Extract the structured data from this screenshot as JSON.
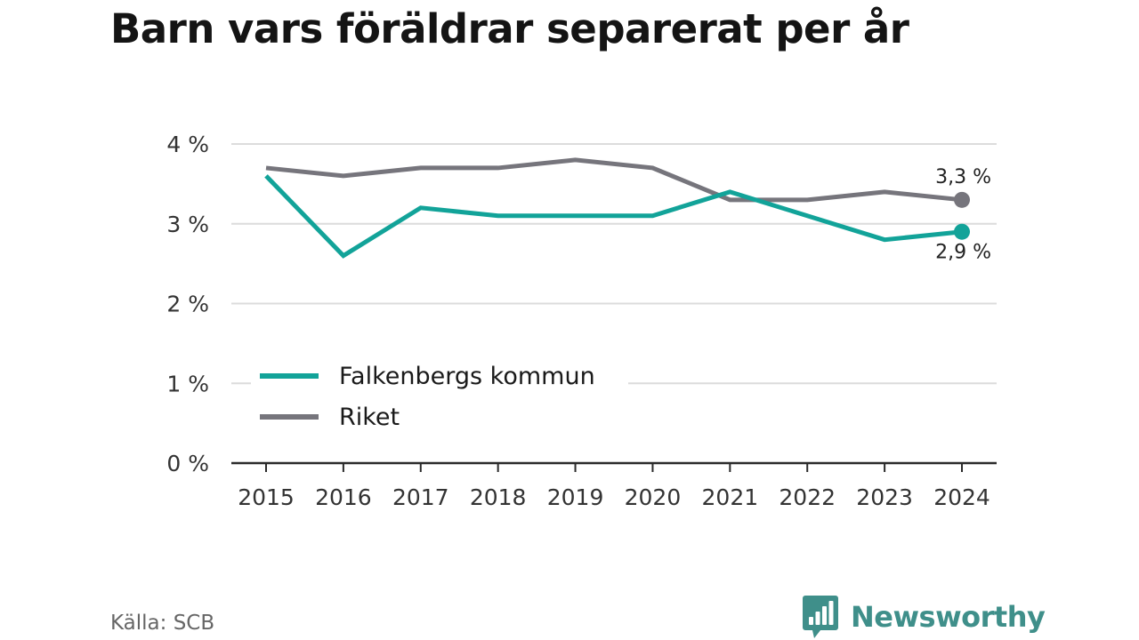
{
  "title": "Barn vars föräldrar separerat per år",
  "source": "Källa: SCB",
  "brand": {
    "name": "Newsworthy",
    "logo_icon": "bar-chart-icon",
    "color": "#3f8f8a"
  },
  "chart_data": {
    "type": "line",
    "title": "Barn vars föräldrar separerat per år",
    "xlabel": "",
    "ylabel": "",
    "x": [
      "2015",
      "2016",
      "2017",
      "2018",
      "2019",
      "2020",
      "2021",
      "2022",
      "2023",
      "2024"
    ],
    "ylim": [
      0,
      4
    ],
    "y_ticks": [
      0,
      1,
      2,
      3,
      4
    ],
    "y_tick_labels": [
      "0 %",
      "1 %",
      "2 %",
      "3 %",
      "4 %"
    ],
    "grid": true,
    "legend_position": "bottom-left",
    "series": [
      {
        "name": "Falkenbergs kommun",
        "color": "#12a399",
        "values": [
          3.6,
          2.6,
          3.2,
          3.1,
          3.1,
          3.1,
          3.4,
          3.1,
          2.8,
          2.9
        ],
        "end_label": "2,9 %"
      },
      {
        "name": "Riket",
        "color": "#76757c",
        "values": [
          3.7,
          3.6,
          3.7,
          3.7,
          3.8,
          3.7,
          3.3,
          3.3,
          3.4,
          3.3
        ],
        "end_label": "3,3 %"
      }
    ]
  }
}
